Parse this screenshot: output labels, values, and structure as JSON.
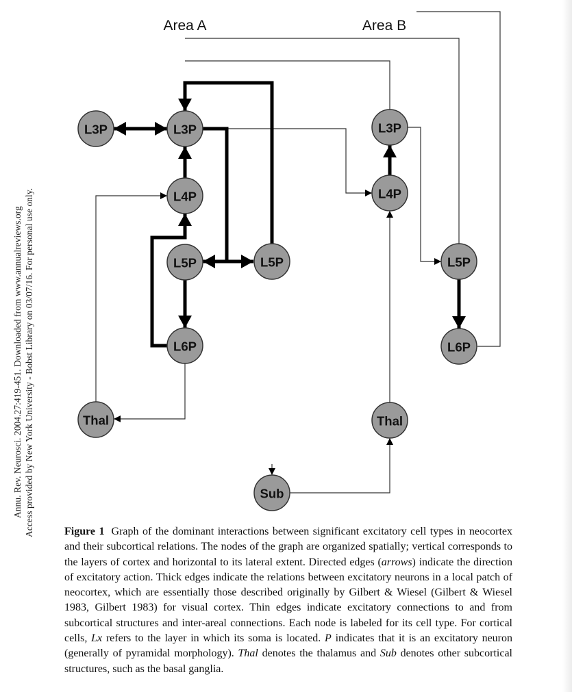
{
  "sidebar": {
    "line1": "Annu. Rev. Neurosci. 2004.27:419-451. Downloaded from www.annualreviews.org",
    "line2": "Access provided by New York University - Bobst Library on 03/07/16. For personal use only."
  },
  "diagram": {
    "area_a": "Area A",
    "area_b": "Area B",
    "nodes": {
      "a_l3p_left": "L3P",
      "a_l3p": "L3P",
      "a_l4p": "L4P",
      "a_l5p": "L5P",
      "a_l5p_right": "L5P",
      "a_l6p": "L6P",
      "a_thal": "Thal",
      "sub": "Sub",
      "b_l3p": "L3P",
      "b_l4p": "L4P",
      "b_l5p": "L5P",
      "b_l6p": "L6P",
      "b_thal": "Thal"
    }
  },
  "caption": {
    "label": "Figure 1",
    "segments": [
      {
        "t": "Graph of the dominant interactions between significant excitatory cell types in neocortex and their subcortical relations. The nodes of the graph are organized spatially; vertical corresponds to the layers of cortex and horizontal to its lateral extent. Directed edges (",
        "i": false
      },
      {
        "t": "arrows",
        "i": true
      },
      {
        "t": ") indicate the direction of excitatory action. Thick edges indicate the relations between excitatory neurons in a local patch of neocortex, which are essentially those described originally by Gilbert & Wiesel (Gilbert & Wiesel 1983, Gilbert 1983) for visual cortex. Thin edges indicate excitatory connections to and from subcortical structures and inter-areal connections. Each node is labeled for its cell type. For cortical cells, ",
        "i": false
      },
      {
        "t": "Lx",
        "i": true
      },
      {
        "t": " refers to the layer in which its soma is located. ",
        "i": false
      },
      {
        "t": "P",
        "i": true
      },
      {
        "t": " indicates that it is an excitatory neuron (generally of pyramidal morphology). ",
        "i": false
      },
      {
        "t": "Thal",
        "i": true
      },
      {
        "t": " denotes the thalamus and ",
        "i": false
      },
      {
        "t": "Sub",
        "i": true
      },
      {
        "t": " denotes other subcortical structures, such as the basal ganglia.",
        "i": false
      }
    ]
  }
}
